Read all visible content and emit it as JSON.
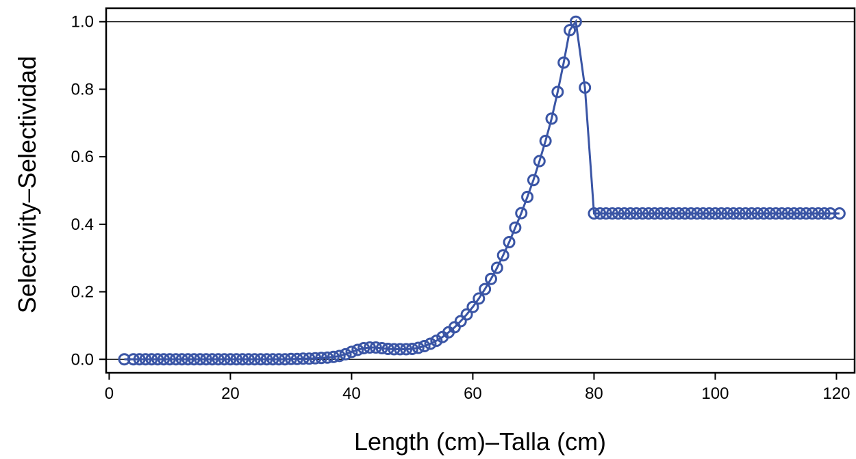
{
  "chart_data": {
    "type": "line",
    "xlabel": "Length (cm)–Talla (cm)",
    "ylabel": "Selectivity–Selectividad",
    "xlim": [
      -0.5,
      123
    ],
    "ylim": [
      -0.04,
      1.04
    ],
    "x_ticks": [
      "0",
      "20",
      "40",
      "60",
      "80",
      "100",
      "120"
    ],
    "y_ticks": [
      "0.0",
      "0.2",
      "0.4",
      "0.6",
      "0.8",
      "1.0"
    ],
    "reference_lines_y": [
      0,
      1
    ],
    "markers": "open-circle",
    "colors": {
      "series": "#3a55a5",
      "axis": "#000000"
    },
    "grid": false,
    "series": [
      {
        "x": [
          2.5,
          4,
          5,
          6,
          7,
          8,
          9,
          10,
          11,
          12,
          13,
          14,
          15,
          16,
          17,
          18,
          19,
          20,
          21,
          22,
          23,
          24,
          25,
          26,
          27,
          28,
          29,
          30,
          31,
          32,
          33,
          34,
          35,
          36,
          37,
          38,
          39,
          40,
          41,
          42,
          43,
          44,
          45,
          46,
          47,
          48,
          49,
          50,
          51,
          52,
          53,
          54,
          55,
          56,
          57,
          58,
          59,
          60,
          61,
          62,
          63,
          64,
          65,
          66,
          67,
          68,
          69,
          70,
          71,
          72,
          73,
          74,
          75,
          76,
          77,
          78.5,
          80,
          81,
          82,
          83,
          84,
          85,
          86,
          87,
          88,
          89,
          90,
          91,
          92,
          93,
          94,
          95,
          96,
          97,
          98,
          99,
          100,
          101,
          102,
          103,
          104,
          105,
          106,
          107,
          108,
          109,
          110,
          111,
          112,
          113,
          114,
          115,
          116,
          117,
          118,
          119,
          120.5
        ],
        "values": [
          0.0,
          0.0,
          0.0,
          0.0,
          0.0,
          0.0,
          0.0,
          0.0,
          0.0,
          0.0,
          0.0,
          0.0,
          0.0,
          0.0,
          0.0,
          0.0,
          0.0,
          0.0,
          0.0,
          0.0,
          0.0,
          0.0,
          0.0,
          0.0,
          0.0,
          0.0,
          0.0,
          0.001,
          0.001,
          0.002,
          0.002,
          0.003,
          0.004,
          0.005,
          0.007,
          0.01,
          0.015,
          0.022,
          0.028,
          0.033,
          0.035,
          0.035,
          0.033,
          0.031,
          0.03,
          0.03,
          0.03,
          0.031,
          0.034,
          0.039,
          0.046,
          0.055,
          0.066,
          0.08,
          0.095,
          0.113,
          0.133,
          0.155,
          0.18,
          0.208,
          0.238,
          0.271,
          0.308,
          0.347,
          0.39,
          0.433,
          0.481,
          0.531,
          0.587,
          0.647,
          0.713,
          0.792,
          0.879,
          0.975,
          1.0,
          0.805,
          0.432,
          0.432,
          0.432,
          0.432,
          0.432,
          0.432,
          0.432,
          0.432,
          0.432,
          0.432,
          0.432,
          0.432,
          0.432,
          0.432,
          0.432,
          0.432,
          0.432,
          0.432,
          0.432,
          0.432,
          0.432,
          0.432,
          0.432,
          0.432,
          0.432,
          0.432,
          0.432,
          0.432,
          0.432,
          0.432,
          0.432,
          0.432,
          0.432,
          0.432,
          0.432,
          0.432,
          0.432,
          0.432,
          0.432,
          0.432,
          0.432
        ]
      }
    ]
  }
}
